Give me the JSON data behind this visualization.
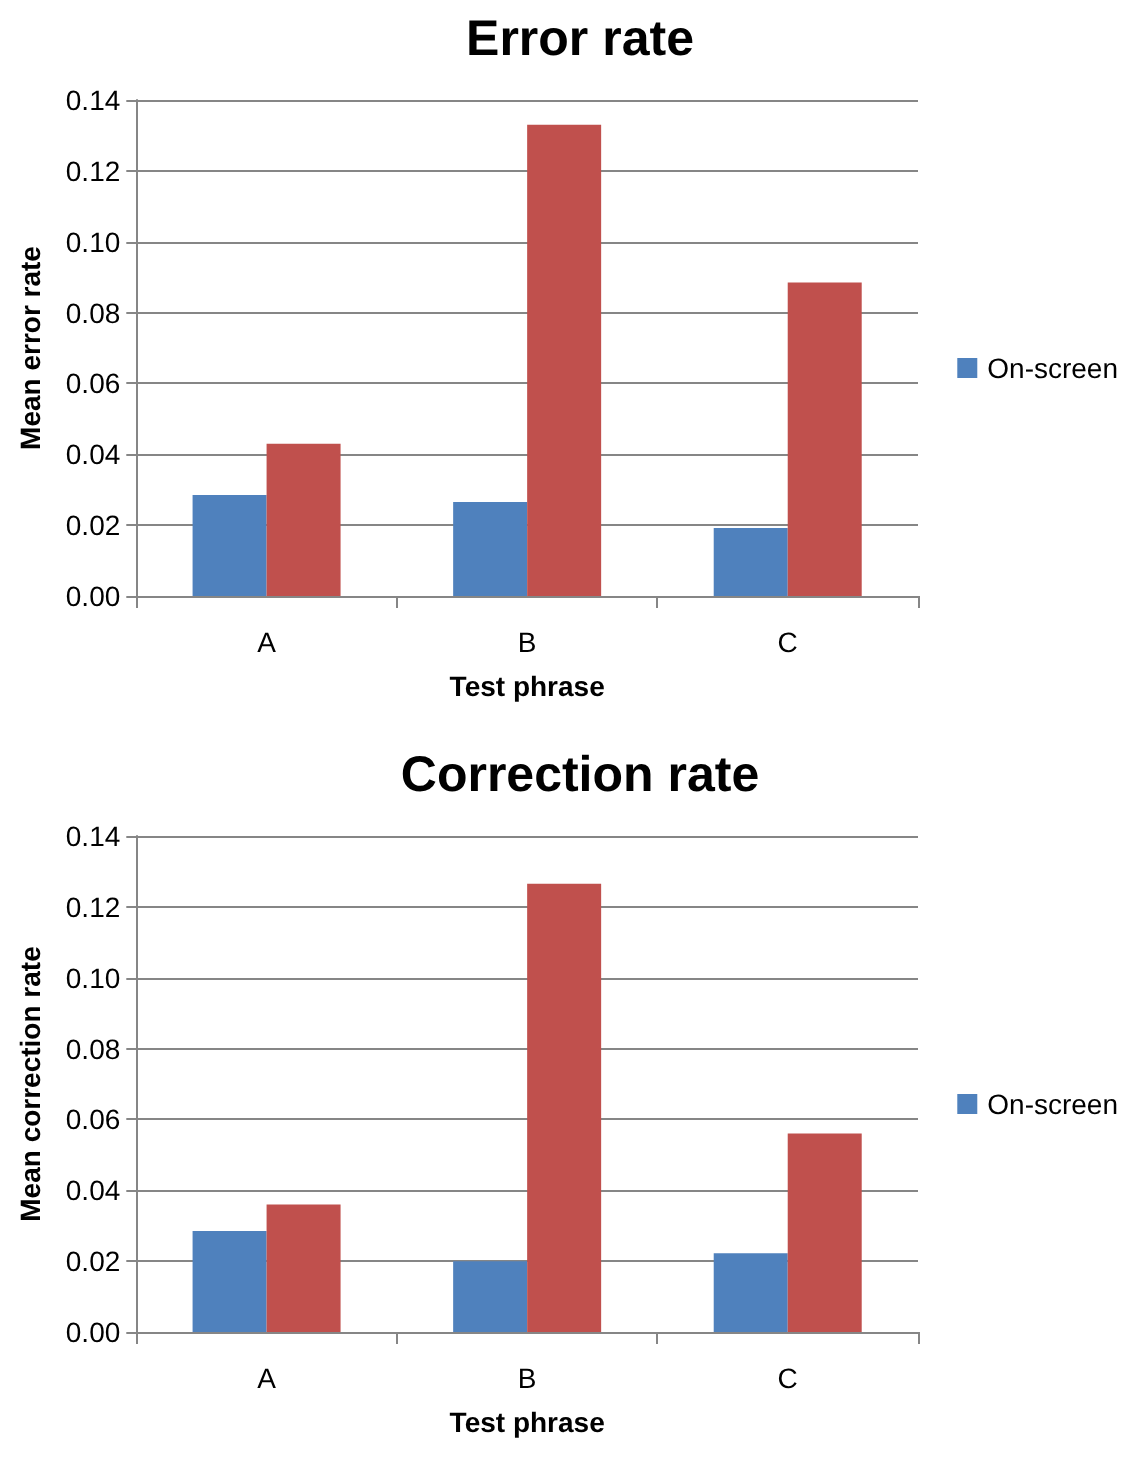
{
  "chart_data": [
    {
      "type": "bar",
      "title": "Error rate",
      "xlabel": "Test phrase",
      "ylabel": "Mean error rate",
      "categories": [
        "A",
        "B",
        "C"
      ],
      "series": [
        {
          "name": "On-screen",
          "color": "#4f81bd",
          "values": [
            0.0285,
            0.0265,
            0.0192
          ]
        },
        {
          "color": "#c0504d",
          "values": [
            0.043,
            0.133,
            0.0885
          ]
        }
      ],
      "ylim": [
        0,
        0.14
      ],
      "yticks": [
        {
          "value": 0,
          "label": "0.00"
        },
        {
          "value": 0.02,
          "label": "0.02"
        },
        {
          "value": 0.04,
          "label": "0.04"
        },
        {
          "value": 0.06,
          "label": "0.06"
        },
        {
          "value": 0.08,
          "label": "0.08"
        },
        {
          "value": 0.1,
          "label": "0.10"
        },
        {
          "value": 0.12,
          "label": "0.12"
        },
        {
          "value": 0.14,
          "label": "0.14"
        }
      ],
      "grid": "y",
      "legend": "right"
    },
    {
      "type": "bar",
      "title": "Correction rate",
      "xlabel": "Test phrase",
      "ylabel": "Mean correction rate",
      "categories": [
        "A",
        "B",
        "C"
      ],
      "series": [
        {
          "name": "On-screen",
          "color": "#4f81bd",
          "values": [
            0.0285,
            0.02,
            0.0222
          ]
        },
        {
          "color": "#c0504d",
          "values": [
            0.036,
            0.1265,
            0.056
          ]
        }
      ],
      "ylim": [
        0,
        0.14
      ],
      "yticks": [
        {
          "value": 0,
          "label": "0.00"
        },
        {
          "value": 0.02,
          "label": "0.02"
        },
        {
          "value": 0.04,
          "label": "0.04"
        },
        {
          "value": 0.06,
          "label": "0.06"
        },
        {
          "value": 0.08,
          "label": "0.08"
        },
        {
          "value": 0.1,
          "label": "0.10"
        },
        {
          "value": 0.12,
          "label": "0.12"
        },
        {
          "value": 0.14,
          "label": "0.14"
        }
      ],
      "grid": "y",
      "legend": "right"
    }
  ]
}
